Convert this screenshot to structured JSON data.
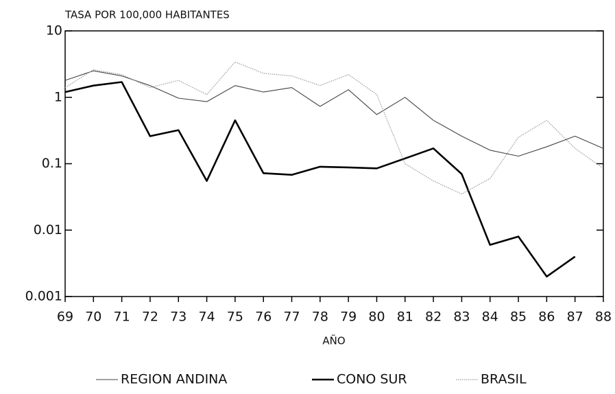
{
  "chart_data": {
    "type": "line",
    "y_axis_label": "TASA POR 100,000 HABITANTES",
    "x_axis_label": "AÑO",
    "categories": [
      "69",
      "70",
      "71",
      "72",
      "73",
      "74",
      "75",
      "76",
      "77",
      "78",
      "79",
      "80",
      "81",
      "82",
      "83",
      "84",
      "85",
      "86",
      "87",
      "88"
    ],
    "series": [
      {
        "name": "REGION ANDINA",
        "color": "#444444",
        "style": "solid-thin",
        "values": [
          1.8,
          2.5,
          2.1,
          1.5,
          0.97,
          0.86,
          1.5,
          1.2,
          1.4,
          0.73,
          1.3,
          0.55,
          1.0,
          0.45,
          0.26,
          0.16,
          0.13,
          0.18,
          0.26,
          0.17
        ]
      },
      {
        "name": "CONO SUR",
        "color": "#000000",
        "style": "solid-thick",
        "values": [
          1.2,
          1.5,
          1.7,
          0.26,
          0.32,
          0.055,
          0.45,
          0.072,
          0.068,
          0.09,
          0.088,
          0.085,
          0.12,
          0.17,
          0.07,
          0.006,
          0.008,
          0.002,
          0.004,
          null
        ]
      },
      {
        "name": "BRASIL",
        "color": "#999999",
        "style": "dotted",
        "values": [
          1.4,
          2.6,
          2.2,
          1.4,
          1.8,
          1.1,
          3.4,
          2.3,
          2.1,
          1.5,
          2.2,
          1.1,
          0.1,
          0.055,
          0.035,
          0.06,
          0.25,
          0.45,
          0.17,
          0.085
        ]
      }
    ],
    "y_scale": "log",
    "ylim": [
      0.001,
      10
    ],
    "yticks": [
      0.001,
      0.01,
      0.1,
      1,
      10
    ],
    "legend": "bottom"
  }
}
